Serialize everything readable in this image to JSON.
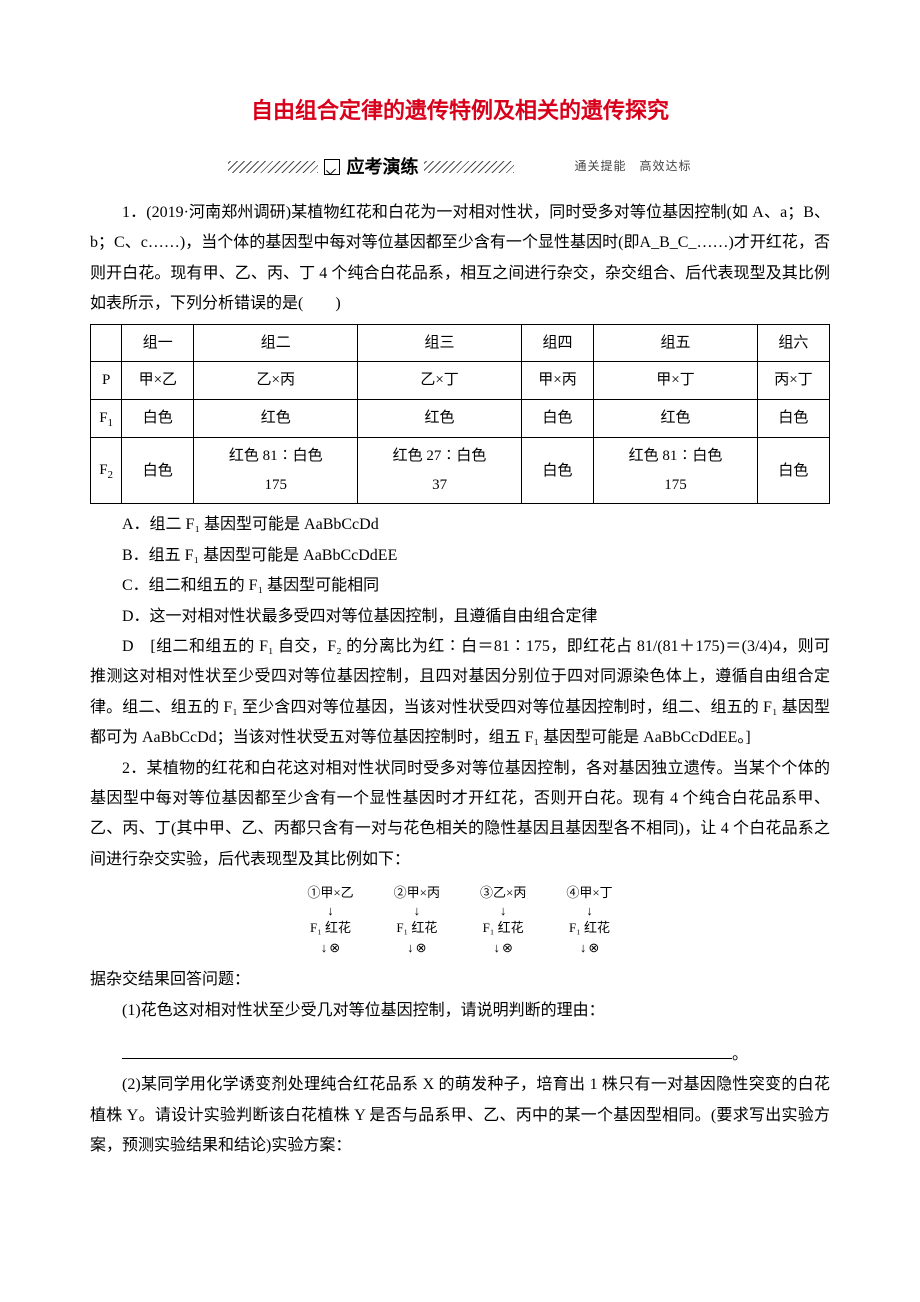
{
  "title": "自由组合定律的遗传特例及相关的遗传探究",
  "subtitle": {
    "label": "应考演练",
    "caption": "通关提能　高效达标"
  },
  "q1": {
    "stem": "1．(2019·河南郑州调研)某植物红花和白花为一对相对性状，同时受多对等位基因控制(如 A、a；B、b；C、c……)，当个体的基因型中每对等位基因都至少含有一个显性基因时(即A_B_C_……)才开红花，否则开白花。现有甲、乙、丙、丁 4 个纯合白花品系，相互之间进行杂交，杂交组合、后代表现型及其比例如表所示，下列分析错误的是(　　)",
    "table": {
      "headers": [
        "",
        "组一",
        "组二",
        "组三",
        "组四",
        "组五",
        "组六"
      ],
      "rows": [
        [
          "P",
          "甲×乙",
          "乙×丙",
          "乙×丁",
          "甲×丙",
          "甲×丁",
          "丙×丁"
        ],
        [
          "F1",
          "白色",
          "红色",
          "红色",
          "白色",
          "红色",
          "白色"
        ],
        [
          "F2",
          "白色",
          "红色 81∶白色175",
          "红色 27∶白色37",
          "白色",
          "红色 81∶白色175",
          "白色"
        ]
      ]
    },
    "options": {
      "A": "A．组二 F₁ 基因型可能是 AaBbCcDd",
      "B": "B．组五 F₁ 基因型可能是 AaBbCcDdEE",
      "C": "C．组二和组五的 F₁ 基因型可能相同",
      "D": "D．这一对相对性状最多受四对等位基因控制，且遵循自由组合定律"
    },
    "answer": "D　[组二和组五的 F₁ 自交，F₂ 的分离比为红∶白＝81∶175，即红花占 81/(81＋175)＝(3/4)4，则可推测这对相对性状至少受四对等位基因控制，且四对基因分别位于四对同源染色体上，遵循自由组合定律。组二、组五的 F₁ 至少含四对等位基因，当该对性状受四对等位基因控制时，组二、组五的 F₁ 基因型都可为 AaBbCcDd；当该对性状受五对等位基因控制时，组五 F₁ 基因型可能是 AaBbCcDdEE。]"
  },
  "q2": {
    "stem": "2．某植物的红花和白花这对相对性状同时受多对等位基因控制，各对基因独立遗传。当某个个体的基因型中每对等位基因都至少含有一个显性基因时才开红花，否则开白花。现有 4 个纯合白花品系甲、乙、丙、丁(其中甲、乙、丙都只含有一对与花色相关的隐性基因且基因型各不相同)，让 4 个白花品系之间进行杂交实验，后代表现型及其比例如下：",
    "crosses": [
      {
        "label": "①甲×乙",
        "f1": "F₁ 红花"
      },
      {
        "label": "②甲×丙",
        "f1": "F₁ 红花"
      },
      {
        "label": "③乙×丙",
        "f1": "F₁ 红花"
      },
      {
        "label": "④甲×丁",
        "f1": "F₁ 红花"
      }
    ],
    "lead": "据杂交结果回答问题：",
    "sub1": "(1)花色这对相对性状至少受几对等位基因控制，请说明判断的理由：",
    "blank_tail": "。",
    "sub2": "(2)某同学用化学诱变剂处理纯合红花品系 X 的萌发种子，培育出 1 株只有一对基因隐性突变的白花植株 Y。请设计实验判断该白花植株 Y 是否与品系甲、乙、丙中的某一个基因型相同。(要求写出实验方案，预测实验结果和结论)实验方案："
  },
  "style": {
    "title_color": "#d9001b",
    "body_fontsize": 16,
    "title_fontsize": 22,
    "table_border": "#000000",
    "background": "#ffffff"
  }
}
